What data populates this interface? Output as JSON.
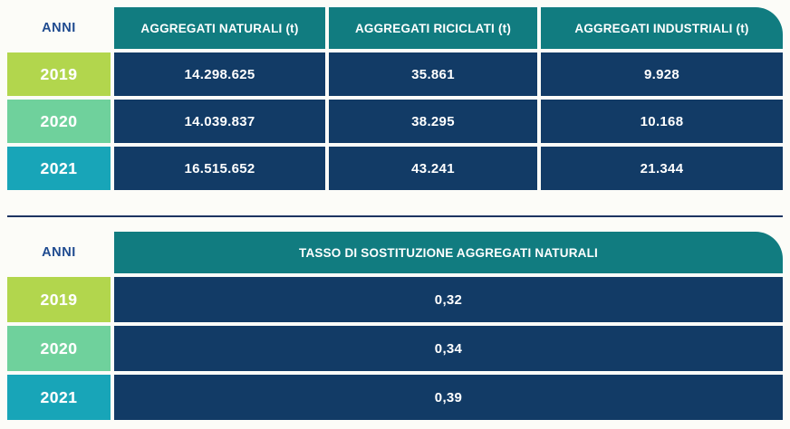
{
  "colors": {
    "header_teal": "#117c80",
    "cell_navy": "#123b66",
    "year_2019": "#b2d64d",
    "year_2020": "#6fd19c",
    "year_2021": "#18a5b8",
    "anni_text_blue": "#1e4a8f",
    "divider_navy": "#1d3461",
    "page_background": "#fcfcf8"
  },
  "table1": {
    "anni_label": "ANNI",
    "columns": [
      "AGGREGATI NATURALI (t)",
      "AGGREGATI RICICLATI (t)",
      "AGGREGATI INDUSTRIALI (t)"
    ],
    "rows": [
      {
        "year": "2019",
        "values": [
          "14.298.625",
          "35.861",
          "9.928"
        ]
      },
      {
        "year": "2020",
        "values": [
          "14.039.837",
          "38.295",
          "10.168"
        ]
      },
      {
        "year": "2021",
        "values": [
          "16.515.652",
          "43.241",
          "21.344"
        ]
      }
    ]
  },
  "table2": {
    "anni_label": "ANNI",
    "column": "TASSO DI SOSTITUZIONE AGGREGATI NATURALI",
    "rows": [
      {
        "year": "2019",
        "value": "0,32"
      },
      {
        "year": "2020",
        "value": "0,34"
      },
      {
        "year": "2021",
        "value": "0,39"
      }
    ]
  },
  "chart_data": [
    {
      "type": "table",
      "title": "Aggregati per anno (t)",
      "columns": [
        "ANNI",
        "AGGREGATI NATURALI (t)",
        "AGGREGATI RICICLATI (t)",
        "AGGREGATI INDUSTRIALI (t)"
      ],
      "rows": [
        [
          "2019",
          14298625,
          35861,
          9928
        ],
        [
          "2020",
          14039837,
          38295,
          10168
        ],
        [
          "2021",
          16515652,
          43241,
          21344
        ]
      ]
    },
    {
      "type": "table",
      "title": "Tasso di sostituzione aggregati naturali",
      "columns": [
        "ANNI",
        "TASSO DI SOSTITUZIONE AGGREGATI NATURALI"
      ],
      "rows": [
        [
          "2019",
          0.32
        ],
        [
          "2020",
          0.34
        ],
        [
          "2021",
          0.39
        ]
      ]
    }
  ]
}
